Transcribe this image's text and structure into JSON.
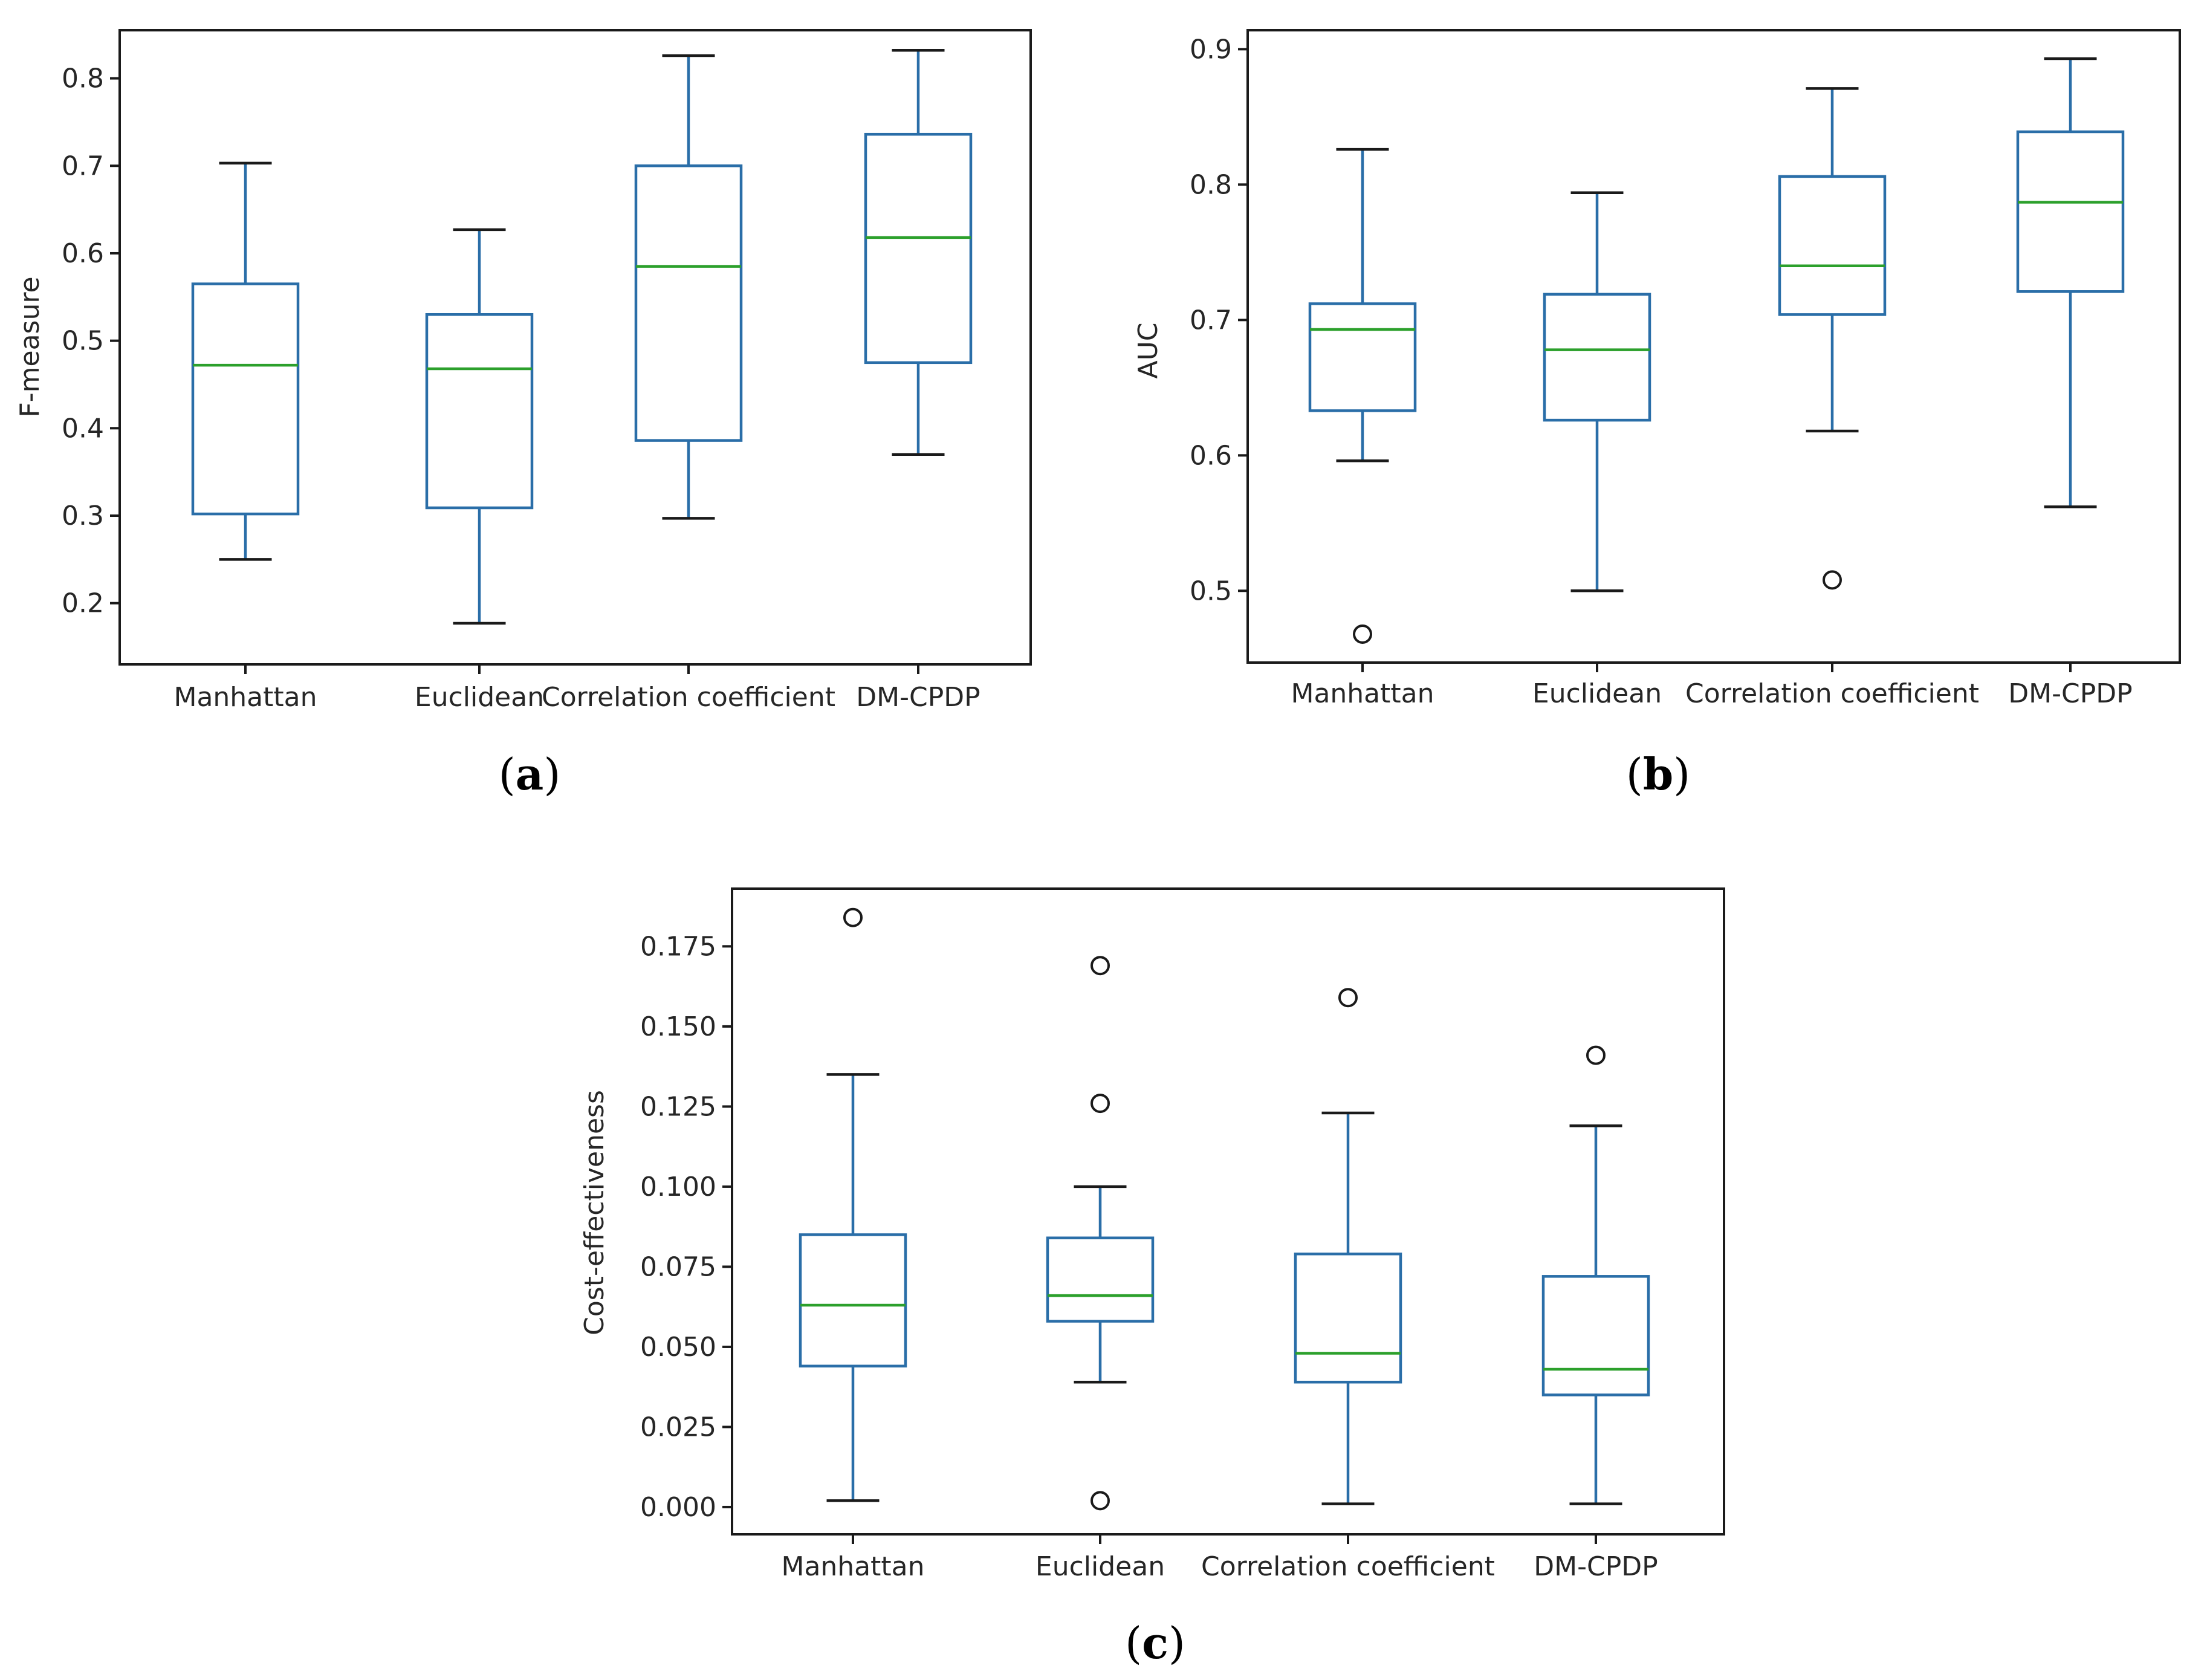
{
  "colors": {
    "box": "#2a6ea8",
    "median": "#2ca02c",
    "caps": "#1a1a1a",
    "fliers": "#1a1a1a",
    "frame": "#1a1a1a"
  },
  "chart_data": [
    {
      "type": "boxplot",
      "panel": "a",
      "panel_label": {
        "open": "(",
        "letter": "a",
        "close": ")"
      },
      "title": "",
      "xlabel": "",
      "ylabel": "F-measure",
      "ylim": [
        0.13,
        0.855
      ],
      "yticks": [
        0.2,
        0.3,
        0.4,
        0.5,
        0.6,
        0.7,
        0.8
      ],
      "ytick_labels": [
        "0.2",
        "0.3",
        "0.4",
        "0.5",
        "0.6",
        "0.7",
        "0.8"
      ],
      "categories": [
        "Manhattan",
        "Euclidean",
        "Correlation coefficient",
        "DM-CPDP"
      ],
      "series": [
        {
          "name": "Manhattan",
          "whislo": 0.25,
          "q1": 0.302,
          "med": 0.472,
          "q3": 0.565,
          "whishi": 0.703,
          "fliers": []
        },
        {
          "name": "Euclidean",
          "whislo": 0.177,
          "q1": 0.309,
          "med": 0.468,
          "q3": 0.53,
          "whishi": 0.627,
          "fliers": []
        },
        {
          "name": "Correlation coefficient",
          "whislo": 0.297,
          "q1": 0.386,
          "med": 0.585,
          "q3": 0.7,
          "whishi": 0.826,
          "fliers": []
        },
        {
          "name": "DM-CPDP",
          "whislo": 0.37,
          "q1": 0.475,
          "med": 0.618,
          "q3": 0.736,
          "whishi": 0.832,
          "fliers": []
        }
      ]
    },
    {
      "type": "boxplot",
      "panel": "b",
      "panel_label": {
        "open": "(",
        "letter": "b",
        "close": ")"
      },
      "title": "",
      "xlabel": "",
      "ylabel": "AUC",
      "ylim": [
        0.447,
        0.914
      ],
      "yticks": [
        0.5,
        0.6,
        0.7,
        0.8,
        0.9
      ],
      "ytick_labels": [
        "0.5",
        "0.6",
        "0.7",
        "0.8",
        "0.9"
      ],
      "categories": [
        "Manhattan",
        "Euclidean",
        "Correlation coefficient",
        "DM-CPDP"
      ],
      "series": [
        {
          "name": "Manhattan",
          "whislo": 0.596,
          "q1": 0.633,
          "med": 0.693,
          "q3": 0.712,
          "whishi": 0.826,
          "fliers": [
            0.468
          ]
        },
        {
          "name": "Euclidean",
          "whislo": 0.5,
          "q1": 0.626,
          "med": 0.678,
          "q3": 0.719,
          "whishi": 0.794,
          "fliers": []
        },
        {
          "name": "Correlation coefficient",
          "whislo": 0.618,
          "q1": 0.704,
          "med": 0.74,
          "q3": 0.806,
          "whishi": 0.871,
          "fliers": [
            0.508
          ]
        },
        {
          "name": "DM-CPDP",
          "whislo": 0.562,
          "q1": 0.721,
          "med": 0.787,
          "q3": 0.839,
          "whishi": 0.893,
          "fliers": []
        }
      ]
    },
    {
      "type": "boxplot",
      "panel": "c",
      "panel_label": {
        "open": "(",
        "letter": "c",
        "close": ")"
      },
      "title": "",
      "xlabel": "",
      "ylabel": "Cost-effectiveness",
      "ylim": [
        -0.0085,
        0.193
      ],
      "yticks": [
        0.0,
        0.025,
        0.05,
        0.075,
        0.1,
        0.125,
        0.15,
        0.175
      ],
      "ytick_labels": [
        "0.000",
        "0.025",
        "0.050",
        "0.075",
        "0.100",
        "0.125",
        "0.150",
        "0.175"
      ],
      "categories": [
        "Manhattan",
        "Euclidean",
        "Correlation coefficient",
        "DM-CPDP"
      ],
      "series": [
        {
          "name": "Manhattan",
          "whislo": 0.002,
          "q1": 0.044,
          "med": 0.063,
          "q3": 0.085,
          "whishi": 0.135,
          "fliers": [
            0.184
          ]
        },
        {
          "name": "Euclidean",
          "whislo": 0.039,
          "q1": 0.058,
          "med": 0.066,
          "q3": 0.084,
          "whishi": 0.1,
          "fliers": [
            0.169,
            0.126,
            0.002
          ]
        },
        {
          "name": "Correlation coefficient",
          "whislo": 0.001,
          "q1": 0.039,
          "med": 0.048,
          "q3": 0.079,
          "whishi": 0.123,
          "fliers": [
            0.159
          ]
        },
        {
          "name": "DM-CPDP",
          "whislo": 0.001,
          "q1": 0.035,
          "med": 0.043,
          "q3": 0.072,
          "whishi": 0.119,
          "fliers": [
            0.141
          ]
        }
      ]
    }
  ]
}
